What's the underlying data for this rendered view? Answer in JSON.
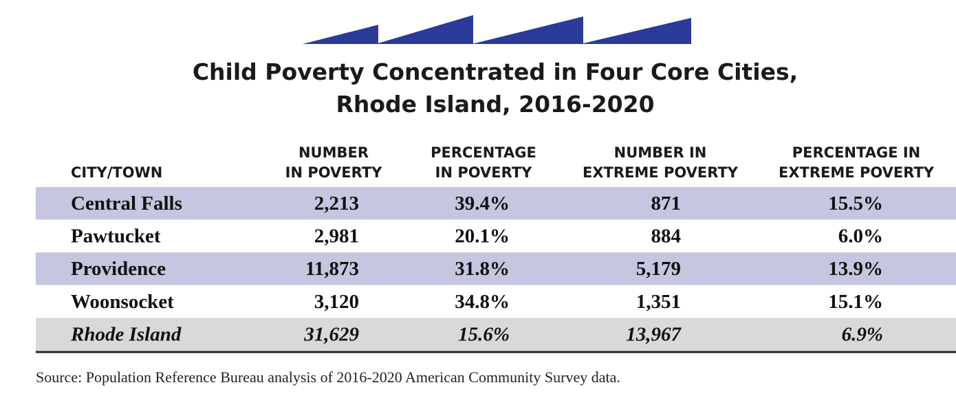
{
  "title": [
    "Child Poverty Concentrated in Four Core Cities,",
    "Rhode Island, 2016-2020"
  ],
  "table": {
    "header": [
      [
        "CITY/TOWN"
      ],
      [
        "NUMBER",
        "IN POVERTY"
      ],
      [
        "PERCENTAGE",
        "IN POVERTY"
      ],
      [
        "NUMBER IN",
        "EXTREME POVERTY"
      ],
      [
        "PERCENTAGE IN",
        "EXTREME POVERTY"
      ]
    ],
    "rows": [
      [
        "Central Falls",
        "2,213",
        "39.4%",
        "871",
        "15.5%"
      ],
      [
        "Pawtucket",
        "2,981",
        "20.1%",
        "884",
        "6.0%"
      ],
      [
        "Providence",
        "11,873",
        "31.8%",
        "5,179",
        "13.9%"
      ],
      [
        "Woonsocket",
        "3,120",
        "34.8%",
        "1,351",
        "15.1%"
      ],
      [
        "Rhode Island",
        "31,629",
        "15.6%",
        "13,967",
        "6.9%"
      ]
    ]
  },
  "source": "Source: Population Reference Bureau analysis of 2016-2020 American Community Survey data."
}
